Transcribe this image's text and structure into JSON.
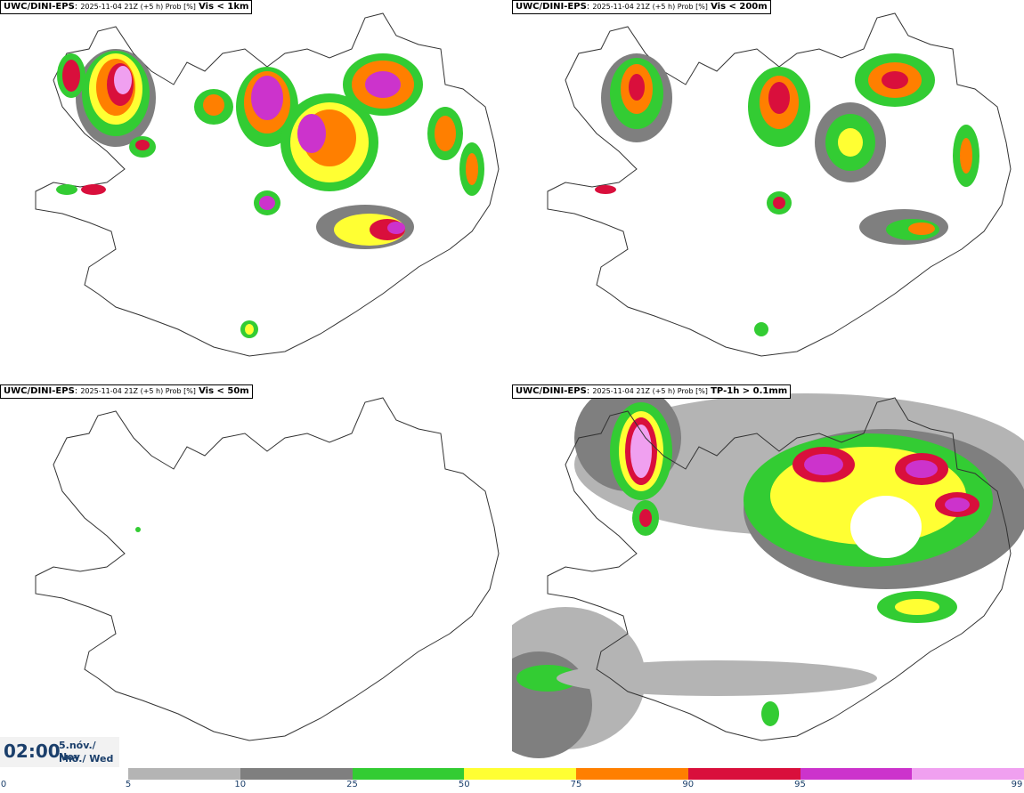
{
  "panels": [
    {
      "model": "UWC/DINI-EPS",
      "meta": "2025-11-04 21Z (+5 h) Prob [%]",
      "variable": "Vis < 1km"
    },
    {
      "model": "UWC/DINI-EPS",
      "meta": "2025-11-04 21Z (+5 h) Prob [%]",
      "variable": "Vis < 200m"
    },
    {
      "model": "UWC/DINI-EPS",
      "meta": "2025-11-04 21Z (+5 h) Prob [%]",
      "variable": "Vis < 50m"
    },
    {
      "model": "UWC/DINI-EPS",
      "meta": "2025-11-04 21Z (+5 h) Prob [%]",
      "variable": "TP-1h > 0.1mm"
    }
  ],
  "valid_time": {
    "time": "02:00",
    "date_line1": "5.nóv./ Nov",
    "date_line2": "Mið./ Wed"
  },
  "colorbar": {
    "ticks": [
      "0",
      "5",
      "10",
      "25",
      "50",
      "75",
      "90",
      "95",
      "99"
    ],
    "colors": [
      "#b4b4b4",
      "#7f7f7f",
      "#33cc33",
      "#ffff33",
      "#ff7f00",
      "#d90f3c",
      "#cc33cc",
      "#f0a0f0"
    ]
  }
}
